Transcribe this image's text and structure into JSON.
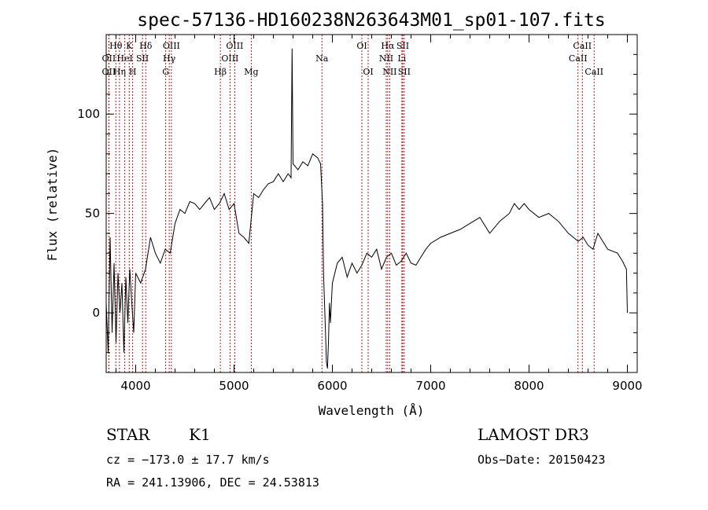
{
  "chart_data": {
    "type": "line",
    "title": "spec-57136-HD160238N263643M01_sp01-107.fits",
    "xlabel": "Wavelength (Å)",
    "ylabel": "Flux (relative)",
    "xlim": [
      3700,
      9100
    ],
    "ylim": [
      -30,
      140
    ],
    "xticks": [
      4000,
      5000,
      6000,
      7000,
      8000,
      9000
    ],
    "yticks": [
      0,
      50,
      100
    ],
    "grid": false,
    "series": [
      {
        "name": "flux",
        "x": [
          3700,
          3720,
          3740,
          3760,
          3780,
          3800,
          3820,
          3840,
          3860,
          3880,
          3900,
          3920,
          3940,
          3960,
          3980,
          4000,
          4050,
          4100,
          4150,
          4200,
          4250,
          4300,
          4350,
          4400,
          4450,
          4500,
          4550,
          4600,
          4650,
          4700,
          4750,
          4800,
          4850,
          4900,
          4950,
          5000,
          5050,
          5100,
          5150,
          5200,
          5250,
          5300,
          5350,
          5400,
          5450,
          5500,
          5550,
          5580,
          5590,
          5600,
          5650,
          5700,
          5750,
          5800,
          5850,
          5880,
          5900,
          5910,
          5920,
          5930,
          5940,
          5950,
          5960,
          5970,
          5980,
          6000,
          6050,
          6100,
          6150,
          6200,
          6250,
          6300,
          6350,
          6400,
          6450,
          6500,
          6550,
          6600,
          6650,
          6700,
          6750,
          6800,
          6850,
          6900,
          6950,
          7000,
          7100,
          7200,
          7300,
          7400,
          7500,
          7600,
          7700,
          7800,
          7850,
          7900,
          7950,
          8000,
          8100,
          8200,
          8300,
          8400,
          8500,
          8550,
          8600,
          8650,
          8700,
          8800,
          8900,
          8950,
          8990,
          9000
        ],
        "y": [
          5,
          -20,
          38,
          -10,
          25,
          -15,
          20,
          0,
          15,
          -20,
          18,
          -5,
          22,
          5,
          -10,
          20,
          15,
          22,
          38,
          30,
          25,
          32,
          30,
          45,
          52,
          50,
          56,
          55,
          52,
          55,
          58,
          52,
          55,
          60,
          52,
          55,
          40,
          38,
          35,
          60,
          58,
          62,
          65,
          66,
          70,
          66,
          70,
          68,
          133,
          75,
          72,
          76,
          74,
          80,
          78,
          75,
          55,
          20,
          5,
          -10,
          -25,
          -28,
          -15,
          5,
          -5,
          15,
          25,
          28,
          18,
          25,
          20,
          24,
          30,
          28,
          32,
          22,
          28,
          30,
          24,
          26,
          30,
          25,
          24,
          28,
          32,
          35,
          38,
          40,
          42,
          45,
          48,
          40,
          46,
          50,
          55,
          52,
          55,
          52,
          48,
          50,
          46,
          40,
          36,
          38,
          34,
          32,
          40,
          32,
          30,
          26,
          22,
          0
        ]
      }
    ],
    "lines": [
      {
        "name": "Hθ",
        "x": 3798,
        "row": 1
      },
      {
        "name": "OII",
        "x": 3727,
        "row": 2
      },
      {
        "name": "OII",
        "x": 3727,
        "row": 3
      },
      {
        "name": "K",
        "x": 3934,
        "row": 1
      },
      {
        "name": "HeI",
        "x": 3889,
        "row": 2
      },
      {
        "name": "Hη",
        "x": 3835,
        "row": 3
      },
      {
        "name": "Hδ",
        "x": 4102,
        "row": 1
      },
      {
        "name": "SII",
        "x": 4069,
        "row": 2
      },
      {
        "name": "H",
        "x": 3969,
        "row": 3
      },
      {
        "name": "OIII",
        "x": 4363,
        "row": 1
      },
      {
        "name": "Hγ",
        "x": 4341,
        "row": 2
      },
      {
        "name": "G",
        "x": 4305,
        "row": 3
      },
      {
        "name": "OIII",
        "x": 5007,
        "row": 1
      },
      {
        "name": "OIII",
        "x": 4959,
        "row": 2
      },
      {
        "name": "Hβ",
        "x": 4861,
        "row": 3
      },
      {
        "name": "Mg",
        "x": 5175,
        "row": 3
      },
      {
        "name": "Na",
        "x": 5894,
        "row": 2
      },
      {
        "name": "OI",
        "x": 6300,
        "row": 1
      },
      {
        "name": "OI",
        "x": 6364,
        "row": 3
      },
      {
        "name": "Hα",
        "x": 6563,
        "row": 1
      },
      {
        "name": "SII",
        "x": 6716,
        "row": 1
      },
      {
        "name": "NII",
        "x": 6548,
        "row": 2
      },
      {
        "name": "Li",
        "x": 6707,
        "row": 2
      },
      {
        "name": "NII",
        "x": 6583,
        "row": 3
      },
      {
        "name": "SII",
        "x": 6731,
        "row": 3
      },
      {
        "name": "CaII",
        "x": 8542,
        "row": 1
      },
      {
        "name": "CaII",
        "x": 8498,
        "row": 2
      },
      {
        "name": "CaII",
        "x": 8662,
        "row": 3
      }
    ]
  },
  "info": {
    "object_type": "STAR",
    "subclass": "K1",
    "survey": "LAMOST DR3",
    "cz": "cz = −173.0 ± 17.7 km/s",
    "obs_date": "Obs−Date: 20150423",
    "coords": "RA = 241.13906, DEC =  24.53813"
  }
}
